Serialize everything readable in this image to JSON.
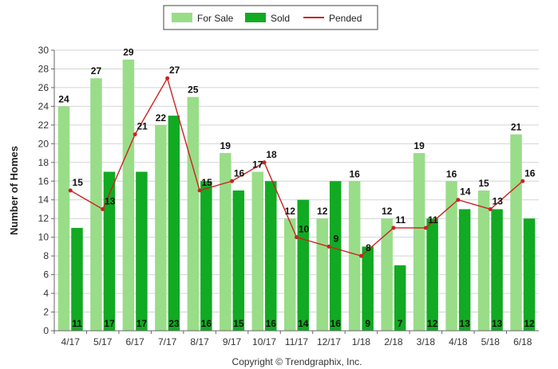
{
  "chart_data": {
    "type": "bar",
    "categories": [
      "4/17",
      "5/17",
      "6/17",
      "7/17",
      "8/17",
      "9/17",
      "10/17",
      "11/17",
      "12/17",
      "1/18",
      "2/18",
      "3/18",
      "4/18",
      "5/18",
      "6/18"
    ],
    "series": [
      {
        "name": "For Sale",
        "type": "bar",
        "color": "#99dd88",
        "values": [
          24,
          27,
          29,
          22,
          25,
          19,
          17,
          12,
          12,
          16,
          12,
          19,
          16,
          15,
          21
        ]
      },
      {
        "name": "Sold",
        "type": "bar",
        "color": "#11aa22",
        "values": [
          11,
          17,
          17,
          23,
          16,
          15,
          16,
          14,
          16,
          9,
          7,
          12,
          13,
          13,
          12
        ]
      },
      {
        "name": "Pended",
        "type": "line",
        "color": "#cc2222",
        "values": [
          15,
          13,
          21,
          27,
          15,
          16,
          18,
          10,
          9,
          8,
          11,
          11,
          14,
          13,
          16
        ]
      }
    ],
    "ylabel": "Number of Homes",
    "xlabel": "",
    "ylim": [
      0,
      30
    ],
    "yticks": [
      0,
      2,
      4,
      6,
      8,
      10,
      12,
      14,
      16,
      18,
      20,
      22,
      24,
      26,
      28,
      30
    ],
    "grid": true,
    "legend": "top-center",
    "copyright": "Copyright © Trendgraphix, Inc."
  }
}
